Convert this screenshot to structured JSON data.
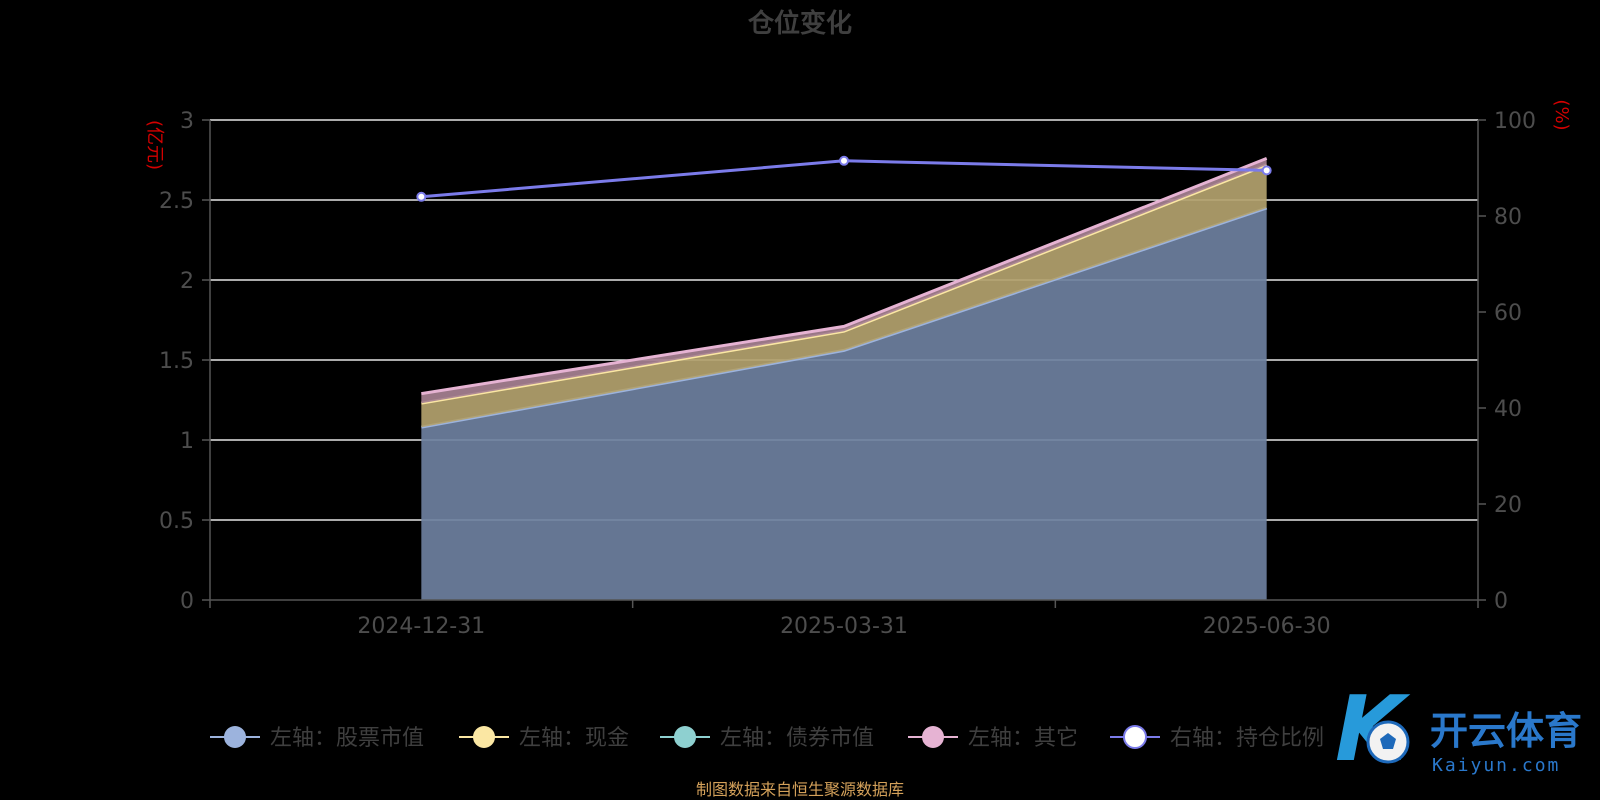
{
  "chart_data": {
    "type": "area",
    "title": "仓位变化",
    "categories": [
      "2024-12-31",
      "2025-03-31",
      "2025-06-30"
    ],
    "left_axis": {
      "unit_label": "(亿元)",
      "ylim": [
        0,
        3
      ],
      "ticks": [
        "0",
        "0.5",
        "1",
        "1.5",
        "2",
        "2.5",
        "3"
      ]
    },
    "right_axis": {
      "unit_label": "(%)",
      "ylim": [
        0,
        100
      ],
      "ticks": [
        "0",
        "20",
        "40",
        "60",
        "80",
        "100"
      ]
    },
    "series": [
      {
        "name": "左轴：股票市值",
        "axis": "left",
        "stack": true,
        "values": [
          1.08,
          1.56,
          2.45
        ],
        "color": "#9cb3dd",
        "fill": "#6e80a0"
      },
      {
        "name": "左轴：现金",
        "axis": "left",
        "stack": true,
        "values": [
          0.15,
          0.12,
          0.27
        ],
        "color": "#fbe7a3",
        "fill": "#b3a26e"
      },
      {
        "name": "左轴：债券市值",
        "axis": "left",
        "stack": true,
        "values": [
          0,
          0,
          0
        ],
        "color": "#8ed0d0",
        "fill": "#8ed0d0"
      },
      {
        "name": "左轴：其它",
        "axis": "left",
        "stack": true,
        "values": [
          0.06,
          0.03,
          0.04
        ],
        "color": "#e6b3d3",
        "fill": "#a78192"
      },
      {
        "name": "右轴：持仓比例",
        "axis": "right",
        "type": "line",
        "values": [
          84,
          91.5,
          89.5
        ],
        "color": "#7b7bea"
      }
    ],
    "grid": true,
    "legend_position": "bottom"
  },
  "footer": {
    "source": "制图数据来自恒生聚源数据库"
  },
  "watermark": {
    "brand_cn": "开云体育",
    "brand_en": "Kaiyun.com",
    "logo_letter": "K"
  }
}
